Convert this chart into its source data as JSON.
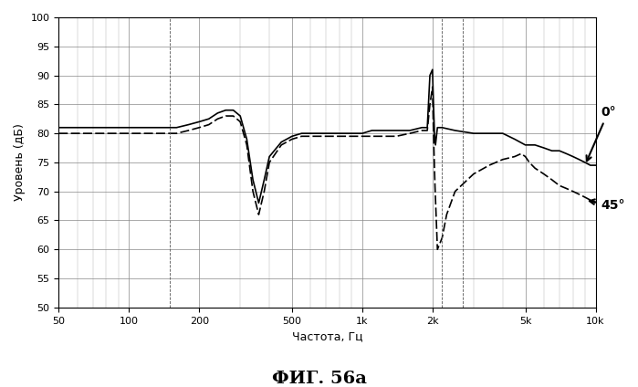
{
  "title": "ФИГ. 56а",
  "ylabel": "Уровень (дБ)",
  "xlabel": "Частота, Гц",
  "xmin": 50,
  "xmax": 10000,
  "ymin": 50,
  "ymax": 100,
  "yticks": [
    50,
    55,
    60,
    65,
    70,
    75,
    80,
    85,
    90,
    95,
    100
  ],
  "xticks_major": [
    50,
    100,
    200,
    500,
    1000,
    2000,
    5000,
    10000
  ],
  "xtick_labels": [
    "50",
    "100",
    "200",
    "500",
    "1k",
    "2k",
    "5k",
    "10k"
  ],
  "line_color": "#000000",
  "annotation_0": "0°",
  "annotation_45": "45°",
  "curve0_x": [
    50,
    60,
    70,
    80,
    90,
    100,
    120,
    140,
    160,
    180,
    200,
    220,
    240,
    260,
    280,
    300,
    320,
    340,
    360,
    380,
    400,
    450,
    500,
    550,
    600,
    650,
    700,
    750,
    800,
    900,
    1000,
    1100,
    1200,
    1400,
    1600,
    1800,
    1900,
    1950,
    2000,
    2020,
    2040,
    2060,
    2100,
    2200,
    2500,
    3000,
    3500,
    4000,
    4500,
    5000,
    5500,
    6000,
    6500,
    7000,
    7500,
    8000,
    8500,
    9000,
    9500,
    10000
  ],
  "curve0_y": [
    81,
    81,
    81,
    81,
    81,
    81,
    81,
    81,
    81,
    81.5,
    82,
    82.5,
    83.5,
    84,
    84,
    83,
    79,
    72,
    68,
    72,
    76,
    78.5,
    79.5,
    80,
    80,
    80,
    80,
    80,
    80,
    80,
    80,
    80.5,
    80.5,
    80.5,
    80.5,
    81,
    81,
    90,
    91,
    85,
    80,
    78,
    81,
    81,
    80.5,
    80,
    80,
    80,
    79,
    78,
    78,
    77.5,
    77,
    77,
    76.5,
    76,
    75.5,
    75,
    74.5,
    74.5
  ],
  "curve45_x": [
    50,
    60,
    70,
    80,
    90,
    100,
    120,
    140,
    160,
    180,
    200,
    220,
    240,
    260,
    280,
    300,
    320,
    340,
    360,
    380,
    400,
    450,
    500,
    550,
    600,
    650,
    700,
    750,
    800,
    900,
    1000,
    1100,
    1200,
    1400,
    1600,
    1800,
    1900,
    1950,
    2000,
    2020,
    2050,
    2100,
    2200,
    2300,
    2500,
    3000,
    3500,
    4000,
    4500,
    4800,
    5000,
    5200,
    5500,
    6000,
    6500,
    7000,
    7500,
    8000,
    8500,
    9000,
    9500,
    10000
  ],
  "curve45_y": [
    80,
    80,
    80,
    80,
    80,
    80,
    80,
    80,
    80,
    80.5,
    81,
    81.5,
    82.5,
    83,
    83,
    82,
    78,
    70,
    66,
    70,
    75,
    78,
    79,
    79.5,
    79.5,
    79.5,
    79.5,
    79.5,
    79.5,
    79.5,
    79.5,
    79.5,
    79.5,
    79.5,
    80,
    80.5,
    80.5,
    85,
    88,
    80,
    71,
    60,
    62,
    66,
    70,
    73,
    74.5,
    75.5,
    76,
    76.5,
    76,
    75,
    74,
    73,
    72,
    71,
    70.5,
    70,
    69.5,
    69,
    68.5,
    68
  ]
}
